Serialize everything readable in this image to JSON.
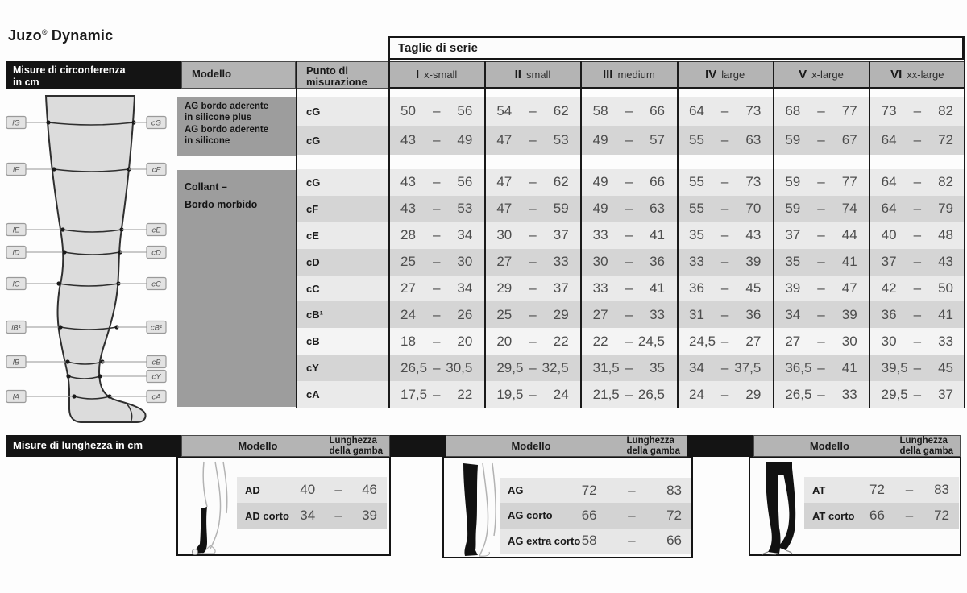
{
  "page_title": {
    "brand": "Juzo",
    "reg": "®",
    "product": "Dynamic"
  },
  "circumference": {
    "section_title_line1": "Misure di circonferenza",
    "section_title_line2": "in cm",
    "taglie_title": "Taglie di serie",
    "modello_header": "Modello",
    "punto_header_line1": "Punto di",
    "punto_header_line2": "misurazione",
    "size_columns": [
      {
        "roman": "I",
        "label": "x-small"
      },
      {
        "roman": "II",
        "label": "small"
      },
      {
        "roman": "III",
        "label": "medium"
      },
      {
        "roman": "IV",
        "label": "large"
      },
      {
        "roman": "V",
        "label": "x-large"
      },
      {
        "roman": "VI",
        "label": "xx-large"
      }
    ],
    "models": [
      {
        "lines": [
          "AG bordo aderente",
          "in silicone plus",
          "AG bordo aderente",
          "in silicone"
        ]
      },
      {
        "lines": [
          "Collant –",
          "Bordo morbido"
        ]
      }
    ],
    "rows": [
      {
        "punto": "cG",
        "shade": "light",
        "values": [
          [
            "50",
            "56"
          ],
          [
            "54",
            "62"
          ],
          [
            "58",
            "66"
          ],
          [
            "64",
            "73"
          ],
          [
            "68",
            "77"
          ],
          [
            "73",
            "82"
          ]
        ]
      },
      {
        "punto": "cG",
        "shade": "dark",
        "values": [
          [
            "43",
            "49"
          ],
          [
            "47",
            "53"
          ],
          [
            "49",
            "57"
          ],
          [
            "55",
            "63"
          ],
          [
            "59",
            "67"
          ],
          [
            "64",
            "72"
          ]
        ]
      },
      {
        "punto": "cG",
        "shade": "light",
        "values": [
          [
            "43",
            "56"
          ],
          [
            "47",
            "62"
          ],
          [
            "49",
            "66"
          ],
          [
            "55",
            "73"
          ],
          [
            "59",
            "77"
          ],
          [
            "64",
            "82"
          ]
        ]
      },
      {
        "punto": "cF",
        "shade": "dark",
        "values": [
          [
            "43",
            "53"
          ],
          [
            "47",
            "59"
          ],
          [
            "49",
            "63"
          ],
          [
            "55",
            "70"
          ],
          [
            "59",
            "74"
          ],
          [
            "64",
            "79"
          ]
        ]
      },
      {
        "punto": "cE",
        "shade": "light",
        "values": [
          [
            "28",
            "34"
          ],
          [
            "30",
            "37"
          ],
          [
            "33",
            "41"
          ],
          [
            "35",
            "43"
          ],
          [
            "37",
            "44"
          ],
          [
            "40",
            "48"
          ]
        ]
      },
      {
        "punto": "cD",
        "shade": "dark",
        "values": [
          [
            "25",
            "30"
          ],
          [
            "27",
            "33"
          ],
          [
            "30",
            "36"
          ],
          [
            "33",
            "39"
          ],
          [
            "35",
            "41"
          ],
          [
            "37",
            "43"
          ]
        ]
      },
      {
        "punto": "cC",
        "shade": "light",
        "values": [
          [
            "27",
            "34"
          ],
          [
            "29",
            "37"
          ],
          [
            "33",
            "41"
          ],
          [
            "36",
            "45"
          ],
          [
            "39",
            "47"
          ],
          [
            "42",
            "50"
          ]
        ]
      },
      {
        "punto": "cB¹",
        "shade": "dark",
        "values": [
          [
            "24",
            "26"
          ],
          [
            "25",
            "29"
          ],
          [
            "27",
            "33"
          ],
          [
            "31",
            "36"
          ],
          [
            "34",
            "39"
          ],
          [
            "36",
            "41"
          ]
        ]
      },
      {
        "punto": "cB",
        "shade": "white",
        "values": [
          [
            "18",
            "20"
          ],
          [
            "20",
            "22"
          ],
          [
            "22",
            "24,5"
          ],
          [
            "24,5",
            "27"
          ],
          [
            "27",
            "30"
          ],
          [
            "30",
            "33"
          ]
        ]
      },
      {
        "punto": "cY",
        "shade": "dark",
        "values": [
          [
            "26,5",
            "30,5"
          ],
          [
            "29,5",
            "32,5"
          ],
          [
            "31,5",
            "35"
          ],
          [
            "34",
            "37,5"
          ],
          [
            "36,5",
            "41"
          ],
          [
            "39,5",
            "45"
          ]
        ]
      },
      {
        "punto": "cA",
        "shade": "light",
        "values": [
          [
            "17,5",
            "22"
          ],
          [
            "19,5",
            "24"
          ],
          [
            "21,5",
            "26,5"
          ],
          [
            "24",
            "29"
          ],
          [
            "26,5",
            "33"
          ],
          [
            "29,5",
            "37"
          ]
        ]
      }
    ],
    "dash": "–"
  },
  "leg_diagram": {
    "left_labels": [
      "lG",
      "lF",
      "lE",
      "lD",
      "lC",
      "lB¹",
      "lB",
      "lA"
    ],
    "right_labels": [
      "cG",
      "cF",
      "cE",
      "cD",
      "cC",
      "cB¹",
      "cB",
      "cY",
      "cA"
    ]
  },
  "length_section": {
    "title": "Misure di lunghezza in cm",
    "modello_header": "Modello",
    "length_header_line1": "Lunghezza",
    "length_header_line2": "della gamba",
    "tables": [
      {
        "rows": [
          {
            "model": "AD",
            "lo": "40",
            "hi": "46"
          },
          {
            "model": "AD corto",
            "lo": "34",
            "hi": "39"
          }
        ]
      },
      {
        "rows": [
          {
            "model": "AG",
            "lo": "72",
            "hi": "83"
          },
          {
            "model": "AG corto",
            "lo": "66",
            "hi": "72"
          },
          {
            "model": "AG extra corto",
            "lo": "58",
            "hi": "66"
          }
        ]
      },
      {
        "rows": [
          {
            "model": "AT",
            "lo": "72",
            "hi": "83"
          },
          {
            "model": "AT corto",
            "lo": "66",
            "hi": "72"
          }
        ]
      }
    ]
  },
  "colors": {
    "bar_black": "#141414",
    "header_gray": "#b4b4b4",
    "model_gray": "#9d9d9d",
    "row_light": "#eaeaea",
    "row_dark": "#d5d5d5"
  }
}
